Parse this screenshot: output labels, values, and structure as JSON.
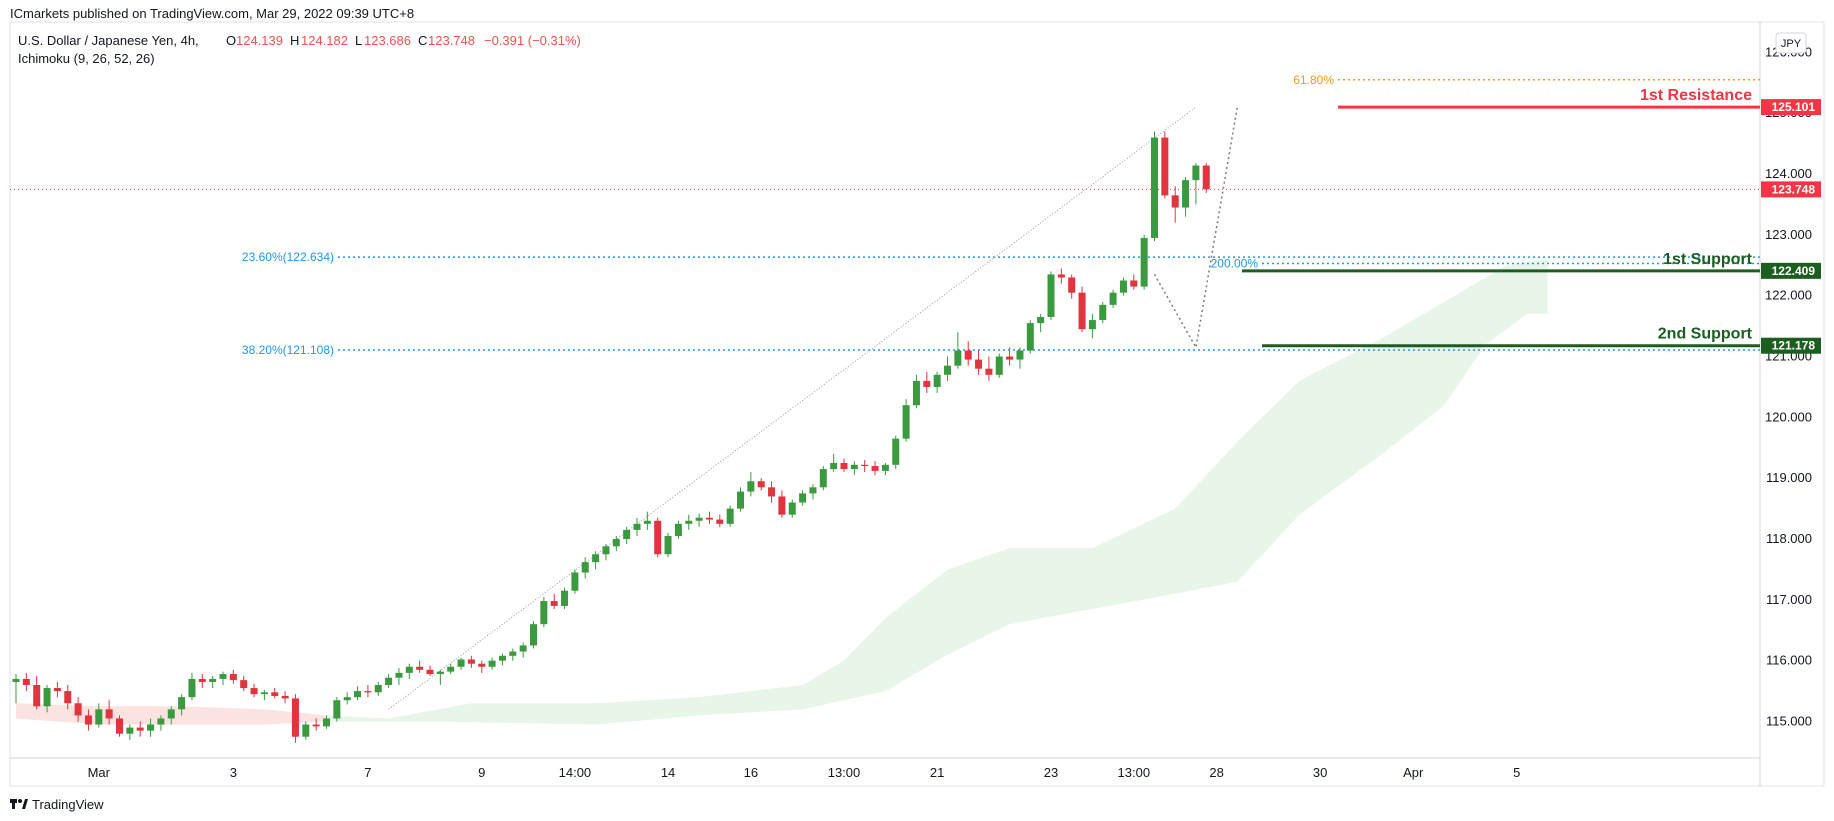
{
  "header": {
    "published": "ICmarkets published on TradingView.com, Mar 29, 2022 09:39 UTC+8",
    "symbol": "U.S. Dollar / Japanese Yen, 4h,",
    "indicator": "Ichimoku (9, 26, 52, 26)",
    "ohlc": {
      "o_label": "O",
      "o": "124.139",
      "h_label": "H",
      "h": "124.182",
      "l_label": "L",
      "l": "123.686",
      "c_label": "C",
      "c": "123.748",
      "change": "−0.391 (−0.31%)"
    },
    "currency_button": "JPY"
  },
  "footer": {
    "brand": "TradingView"
  },
  "colors": {
    "up": "#26a69a",
    "up_body": "#3b9a3f",
    "down": "#e0343e",
    "resistance": "#f23645",
    "support": "#1b5e20",
    "fib_blue": "#2196f3",
    "fib_orange": "#f39c12",
    "cloud_green": "#e8f5e9",
    "cloud_red": "#fde2e2",
    "last_price": "#f23645"
  },
  "chart_data": {
    "type": "candlestick",
    "title": "U.S. Dollar / Japanese Yen, 4h",
    "y_range": [
      114.4,
      126.5
    ],
    "y_ticks": [
      "126.000",
      "125.000",
      "124.000",
      "123.000",
      "122.000",
      "121.000",
      "120.000",
      "119.000",
      "118.000",
      "117.000",
      "116.000",
      "115.000"
    ],
    "x_ticks": [
      {
        "label": "Mar",
        "bar": 8
      },
      {
        "label": "3",
        "bar": 21
      },
      {
        "label": "7",
        "bar": 34
      },
      {
        "label": "9",
        "bar": 45
      },
      {
        "label": "14:00",
        "bar": 54
      },
      {
        "label": "14",
        "bar": 63
      },
      {
        "label": "16",
        "bar": 71
      },
      {
        "label": "13:00",
        "bar": 80
      },
      {
        "label": "21",
        "bar": 89
      },
      {
        "label": "23",
        "bar": 100
      },
      {
        "label": "13:00",
        "bar": 108
      },
      {
        "label": "28",
        "bar": 116
      },
      {
        "label": "30",
        "bar": 126
      },
      {
        "label": "Apr",
        "bar": 135
      },
      {
        "label": "5",
        "bar": 145
      }
    ],
    "ohlc": [
      [
        115.65,
        115.78,
        115.3,
        115.7
      ],
      [
        115.7,
        115.8,
        115.5,
        115.6
      ],
      [
        115.6,
        115.75,
        115.2,
        115.25
      ],
      [
        115.25,
        115.6,
        115.15,
        115.55
      ],
      [
        115.55,
        115.65,
        115.4,
        115.5
      ],
      [
        115.5,
        115.6,
        115.2,
        115.3
      ],
      [
        115.3,
        115.4,
        115.0,
        115.1
      ],
      [
        115.1,
        115.2,
        114.85,
        114.95
      ],
      [
        114.95,
        115.3,
        114.9,
        115.2
      ],
      [
        115.2,
        115.35,
        114.95,
        115.05
      ],
      [
        115.05,
        115.1,
        114.75,
        114.8
      ],
      [
        114.8,
        114.95,
        114.7,
        114.9
      ],
      [
        114.9,
        115.0,
        114.75,
        114.85
      ],
      [
        114.85,
        115.05,
        114.75,
        114.95
      ],
      [
        114.95,
        115.1,
        114.85,
        115.05
      ],
      [
        115.05,
        115.25,
        114.95,
        115.2
      ],
      [
        115.2,
        115.45,
        115.1,
        115.4
      ],
      [
        115.4,
        115.8,
        115.35,
        115.7
      ],
      [
        115.7,
        115.78,
        115.55,
        115.65
      ],
      [
        115.65,
        115.75,
        115.55,
        115.7
      ],
      [
        115.7,
        115.82,
        115.6,
        115.78
      ],
      [
        115.78,
        115.85,
        115.62,
        115.68
      ],
      [
        115.68,
        115.75,
        115.5,
        115.55
      ],
      [
        115.55,
        115.62,
        115.4,
        115.45
      ],
      [
        115.45,
        115.52,
        115.35,
        115.48
      ],
      [
        115.48,
        115.55,
        115.38,
        115.42
      ],
      [
        115.42,
        115.5,
        115.3,
        115.38
      ],
      [
        115.38,
        115.45,
        114.65,
        114.75
      ],
      [
        114.75,
        115.0,
        114.7,
        114.95
      ],
      [
        114.95,
        115.05,
        114.85,
        114.92
      ],
      [
        114.92,
        115.1,
        114.88,
        115.05
      ],
      [
        115.05,
        115.4,
        115.0,
        115.35
      ],
      [
        115.35,
        115.48,
        115.28,
        115.4
      ],
      [
        115.4,
        115.58,
        115.35,
        115.5
      ],
      [
        115.5,
        115.6,
        115.4,
        115.48
      ],
      [
        115.48,
        115.65,
        115.42,
        115.6
      ],
      [
        115.6,
        115.78,
        115.55,
        115.72
      ],
      [
        115.72,
        115.88,
        115.6,
        115.8
      ],
      [
        115.8,
        115.95,
        115.7,
        115.9
      ],
      [
        115.9,
        116.0,
        115.8,
        115.85
      ],
      [
        115.85,
        115.92,
        115.75,
        115.78
      ],
      [
        115.78,
        115.85,
        115.6,
        115.82
      ],
      [
        115.82,
        115.95,
        115.78,
        115.9
      ],
      [
        115.9,
        116.05,
        115.85,
        116.02
      ],
      [
        116.02,
        116.08,
        115.88,
        115.95
      ],
      [
        115.95,
        116.0,
        115.8,
        115.9
      ],
      [
        115.9,
        116.05,
        115.85,
        116.0
      ],
      [
        116.0,
        116.12,
        115.92,
        116.08
      ],
      [
        116.08,
        116.2,
        116.0,
        116.15
      ],
      [
        116.15,
        116.3,
        116.05,
        116.25
      ],
      [
        116.25,
        116.65,
        116.2,
        116.6
      ],
      [
        116.6,
        117.05,
        116.55,
        116.98
      ],
      [
        116.98,
        117.1,
        116.85,
        116.9
      ],
      [
        116.9,
        117.2,
        116.85,
        117.15
      ],
      [
        117.15,
        117.5,
        117.1,
        117.45
      ],
      [
        117.45,
        117.7,
        117.35,
        117.62
      ],
      [
        117.62,
        117.8,
        117.5,
        117.75
      ],
      [
        117.75,
        117.92,
        117.65,
        117.88
      ],
      [
        117.88,
        118.05,
        117.8,
        118.0
      ],
      [
        118.0,
        118.2,
        117.92,
        118.15
      ],
      [
        118.15,
        118.35,
        118.05,
        118.25
      ],
      [
        118.25,
        118.45,
        118.15,
        118.3
      ],
      [
        118.3,
        118.35,
        117.7,
        117.75
      ],
      [
        117.75,
        118.1,
        117.7,
        118.05
      ],
      [
        118.05,
        118.3,
        118.0,
        118.25
      ],
      [
        118.25,
        118.4,
        118.15,
        118.3
      ],
      [
        118.3,
        118.42,
        118.2,
        118.35
      ],
      [
        118.35,
        118.45,
        118.25,
        118.32
      ],
      [
        118.32,
        118.4,
        118.2,
        118.25
      ],
      [
        118.25,
        118.55,
        118.2,
        118.5
      ],
      [
        118.5,
        118.85,
        118.45,
        118.78
      ],
      [
        118.78,
        119.1,
        118.7,
        118.95
      ],
      [
        118.95,
        119.0,
        118.8,
        118.85
      ],
      [
        118.85,
        118.95,
        118.6,
        118.7
      ],
      [
        118.7,
        118.8,
        118.35,
        118.4
      ],
      [
        118.4,
        118.65,
        118.35,
        118.6
      ],
      [
        118.6,
        118.8,
        118.55,
        118.75
      ],
      [
        118.75,
        118.9,
        118.65,
        118.85
      ],
      [
        118.85,
        119.2,
        118.8,
        119.15
      ],
      [
        119.15,
        119.4,
        119.1,
        119.25
      ],
      [
        119.25,
        119.32,
        119.1,
        119.15
      ],
      [
        119.15,
        119.28,
        119.05,
        119.22
      ],
      [
        119.22,
        119.3,
        119.1,
        119.2
      ],
      [
        119.2,
        119.28,
        119.05,
        119.12
      ],
      [
        119.12,
        119.25,
        119.05,
        119.22
      ],
      [
        119.22,
        119.7,
        119.15,
        119.65
      ],
      [
        119.65,
        120.3,
        119.6,
        120.2
      ],
      [
        120.2,
        120.7,
        120.15,
        120.6
      ],
      [
        120.6,
        120.75,
        120.4,
        120.5
      ],
      [
        120.5,
        120.75,
        120.4,
        120.7
      ],
      [
        120.7,
        121.0,
        120.6,
        120.85
      ],
      [
        120.85,
        121.4,
        120.8,
        121.1
      ],
      [
        121.1,
        121.25,
        120.85,
        120.95
      ],
      [
        120.95,
        121.1,
        120.7,
        120.8
      ],
      [
        120.8,
        121.0,
        120.6,
        120.7
      ],
      [
        120.7,
        121.05,
        120.65,
        121.0
      ],
      [
        121.0,
        121.15,
        120.85,
        120.95
      ],
      [
        120.95,
        121.15,
        120.8,
        121.1
      ],
      [
        121.1,
        121.6,
        121.05,
        121.55
      ],
      [
        121.55,
        121.7,
        121.4,
        121.65
      ],
      [
        121.65,
        122.4,
        121.6,
        122.35
      ],
      [
        122.35,
        122.45,
        122.2,
        122.3
      ],
      [
        122.3,
        122.35,
        121.95,
        122.05
      ],
      [
        122.05,
        122.15,
        121.4,
        121.45
      ],
      [
        121.45,
        121.7,
        121.3,
        121.6
      ],
      [
        121.6,
        121.9,
        121.55,
        121.85
      ],
      [
        121.85,
        122.1,
        121.8,
        122.05
      ],
      [
        122.05,
        122.3,
        122.0,
        122.25
      ],
      [
        122.25,
        122.35,
        122.1,
        122.15
      ],
      [
        122.15,
        123.0,
        122.1,
        122.95
      ],
      [
        122.95,
        124.7,
        122.9,
        124.6
      ],
      [
        124.6,
        124.7,
        123.6,
        123.65
      ],
      [
        123.65,
        123.8,
        123.2,
        123.45
      ],
      [
        123.45,
        123.95,
        123.3,
        123.9
      ],
      [
        123.9,
        124.18,
        123.5,
        124.14
      ],
      [
        124.14,
        124.18,
        123.69,
        123.75
      ]
    ],
    "levels": [
      {
        "name": "1st Resistance",
        "value": 125.101,
        "tag": "125.101"
      },
      {
        "name": "1st Support",
        "value": 122.409,
        "tag": "122.409"
      },
      {
        "name": "2nd Support",
        "value": 121.178,
        "tag": "121.178"
      }
    ],
    "last_price": {
      "value": 123.748,
      "tag": "123.748"
    },
    "fib_retracements": [
      {
        "label": "23.60%(122.634)",
        "value": 122.634
      },
      {
        "label": "38.20%(121.108)",
        "value": 121.108
      }
    ],
    "fib_extensions": [
      {
        "label": "61.80%",
        "value": 125.55
      },
      {
        "label": "200.00%",
        "value": 122.53
      }
    ],
    "trendline": {
      "from_bar": 36,
      "from_value": 115.2,
      "to_bar": 114,
      "to_value": 125.1
    },
    "zigzag": [
      {
        "bar": 110,
        "value": 122.35
      },
      {
        "bar": 114,
        "value": 121.15
      },
      {
        "bar": 118,
        "value": 125.1
      }
    ],
    "cloud_red_top": [
      [
        0,
        115.3
      ],
      [
        8,
        115.25
      ],
      [
        16,
        115.25
      ],
      [
        24,
        115.2
      ],
      [
        30,
        115.1
      ]
    ],
    "cloud_red_bottom": [
      [
        0,
        115.05
      ],
      [
        8,
        114.95
      ],
      [
        16,
        114.95
      ],
      [
        24,
        114.95
      ],
      [
        30,
        115.0
      ]
    ],
    "cloud_green_top": [
      [
        30,
        115.1
      ],
      [
        36,
        115.05
      ],
      [
        44,
        115.3
      ],
      [
        56,
        115.3
      ],
      [
        66,
        115.4
      ],
      [
        76,
        115.6
      ],
      [
        80,
        116.0
      ],
      [
        84,
        116.7
      ],
      [
        90,
        117.5
      ],
      [
        96,
        117.85
      ],
      [
        104,
        117.85
      ],
      [
        112,
        118.5
      ],
      [
        118,
        119.6
      ],
      [
        124,
        120.6
      ],
      [
        132,
        121.3
      ],
      [
        140,
        122.1
      ],
      [
        144,
        122.5
      ],
      [
        148,
        122.6
      ]
    ],
    "cloud_green_bottom": [
      [
        30,
        115.0
      ],
      [
        40,
        115.0
      ],
      [
        56,
        114.95
      ],
      [
        66,
        115.1
      ],
      [
        76,
        115.2
      ],
      [
        84,
        115.5
      ],
      [
        90,
        116.1
      ],
      [
        96,
        116.6
      ],
      [
        104,
        116.85
      ],
      [
        112,
        117.1
      ],
      [
        118,
        117.3
      ],
      [
        124,
        118.4
      ],
      [
        128,
        118.9
      ],
      [
        132,
        119.4
      ],
      [
        138,
        120.2
      ],
      [
        142,
        121.2
      ],
      [
        146,
        121.7
      ],
      [
        148,
        121.7
      ]
    ]
  }
}
